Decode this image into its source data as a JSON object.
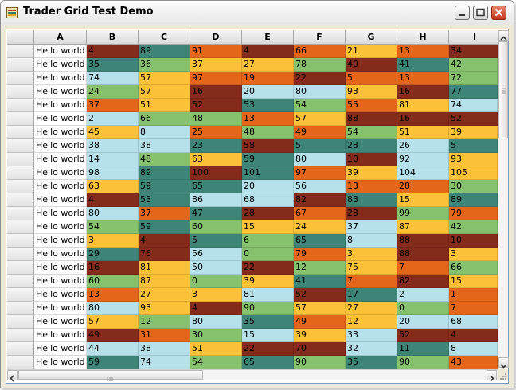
{
  "window": {
    "title": "Trader Grid Test Demo"
  },
  "grid": {
    "columns": [
      "A",
      "B",
      "C",
      "D",
      "E",
      "F",
      "G",
      "H",
      "I"
    ],
    "palette": {
      "R": "#852b1c",
      "T": "#3e8577",
      "O": "#e3661a",
      "Y": "#fbc139",
      "G": "#86c16e",
      "L": "#b6e0ea"
    },
    "rows": [
      {
        "a": "Hello world",
        "v": [
          "4",
          "89",
          "91",
          "4",
          "66",
          "21",
          "13",
          "34"
        ],
        "c": "RTOROYOR"
      },
      {
        "a": "Hello world",
        "v": [
          "35",
          "36",
          "37",
          "27",
          "78",
          "40",
          "41",
          "42"
        ],
        "c": "TGYYGRTG"
      },
      {
        "a": "Hello world",
        "v": [
          "74",
          "57",
          "97",
          "19",
          "22",
          "5",
          "13",
          "72"
        ],
        "c": "LYOOROOG"
      },
      {
        "a": "Hello world",
        "v": [
          "24",
          "57",
          "16",
          "20",
          "80",
          "93",
          "16",
          "77"
        ],
        "c": "GYRLLYRT"
      },
      {
        "a": "Hello world",
        "v": [
          "37",
          "51",
          "52",
          "53",
          "54",
          "55",
          "81",
          "74"
        ],
        "c": "OYRTGOYL"
      },
      {
        "a": "Hello world",
        "v": [
          "2",
          "66",
          "48",
          "13",
          "57",
          "88",
          "16",
          "52"
        ],
        "c": "LGGOYRRR"
      },
      {
        "a": "Hello world",
        "v": [
          "45",
          "8",
          "25",
          "48",
          "49",
          "54",
          "51",
          "39"
        ],
        "c": "YLOGOGYY"
      },
      {
        "a": "Hello world",
        "v": [
          "38",
          "38",
          "23",
          "58",
          "5",
          "23",
          "26",
          "5"
        ],
        "c": "LLTRTTLT"
      },
      {
        "a": "Hello world",
        "v": [
          "14",
          "48",
          "63",
          "59",
          "80",
          "10",
          "92",
          "93"
        ],
        "c": "LGYTLRLY"
      },
      {
        "a": "Hello world",
        "v": [
          "98",
          "89",
          "100",
          "101",
          "97",
          "39",
          "104",
          "105"
        ],
        "c": "LTRTOYLY"
      },
      {
        "a": "Hello world",
        "v": [
          "63",
          "59",
          "65",
          "20",
          "56",
          "13",
          "28",
          "30"
        ],
        "c": "YTTLLOOG"
      },
      {
        "a": "Hello world",
        "v": [
          "4",
          "53",
          "86",
          "68",
          "82",
          "83",
          "15",
          "89"
        ],
        "c": "RTLLRTYT"
      },
      {
        "a": "Hello world",
        "v": [
          "80",
          "37",
          "47",
          "28",
          "67",
          "23",
          "99",
          "79"
        ],
        "c": "LOTRORGO"
      },
      {
        "a": "Hello world",
        "v": [
          "54",
          "59",
          "60",
          "15",
          "24",
          "37",
          "87",
          "42"
        ],
        "c": "GTGYYLYG"
      },
      {
        "a": "Hello world",
        "v": [
          "3",
          "4",
          "5",
          "6",
          "65",
          "8",
          "88",
          "10"
        ],
        "c": "YRTGTLRR"
      },
      {
        "a": "Hello world",
        "v": [
          "29",
          "76",
          "56",
          "0",
          "79",
          "3",
          "88",
          "3"
        ],
        "c": "TRLGOYRY"
      },
      {
        "a": "Hello world",
        "v": [
          "16",
          "81",
          "50",
          "22",
          "12",
          "75",
          "7",
          "66"
        ],
        "c": "RYLRGYOG"
      },
      {
        "a": "Hello world",
        "v": [
          "60",
          "87",
          "0",
          "39",
          "41",
          "7",
          "82",
          "15"
        ],
        "c": "GYGYTORY"
      },
      {
        "a": "Hello world",
        "v": [
          "13",
          "27",
          "3",
          "81",
          "52",
          "17",
          "2",
          "1"
        ],
        "c": "OYYLRTLO"
      },
      {
        "a": "Hello world",
        "v": [
          "80",
          "93",
          "4",
          "90",
          "57",
          "27",
          "0",
          "7"
        ],
        "c": "LYRGYYGO"
      },
      {
        "a": "Hello world",
        "v": [
          "57",
          "12",
          "80",
          "35",
          "49",
          "12",
          "20",
          "68"
        ],
        "c": "YGLTOYLL"
      },
      {
        "a": "Hello world",
        "v": [
          "49",
          "31",
          "30",
          "15",
          "39",
          "33",
          "52",
          "4"
        ],
        "c": "ROGLYLRR"
      },
      {
        "a": "Hello world",
        "v": [
          "44",
          "38",
          "51",
          "22",
          "70",
          "32",
          "11",
          "8"
        ],
        "c": "LLYRRLTL"
      },
      {
        "a": "Hello world",
        "v": [
          "59",
          "74",
          "54",
          "65",
          "90",
          "35",
          "90",
          "43"
        ],
        "c": "TLGTGTGO"
      }
    ]
  }
}
